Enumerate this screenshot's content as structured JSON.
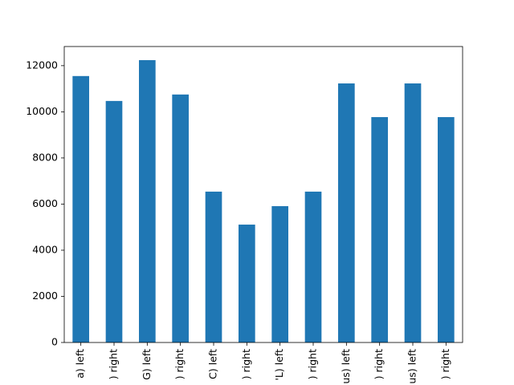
{
  "chart_data": {
    "type": "bar",
    "categories": [
      "a) left",
      ") right",
      "G) left",
      ") right",
      "C) left",
      ") right",
      "'L) left",
      ") right",
      "us) left",
      ") right",
      "us) left",
      ") right"
    ],
    "values": [
      11550,
      10470,
      12240,
      10750,
      6540,
      5110,
      5910,
      6540,
      11230,
      9770,
      11230,
      9770
    ],
    "color": "#1f77b4",
    "ylim": [
      0,
      12830
    ],
    "yticks": [
      0,
      2000,
      4000,
      6000,
      8000,
      10000,
      12000
    ],
    "grid": false
  }
}
